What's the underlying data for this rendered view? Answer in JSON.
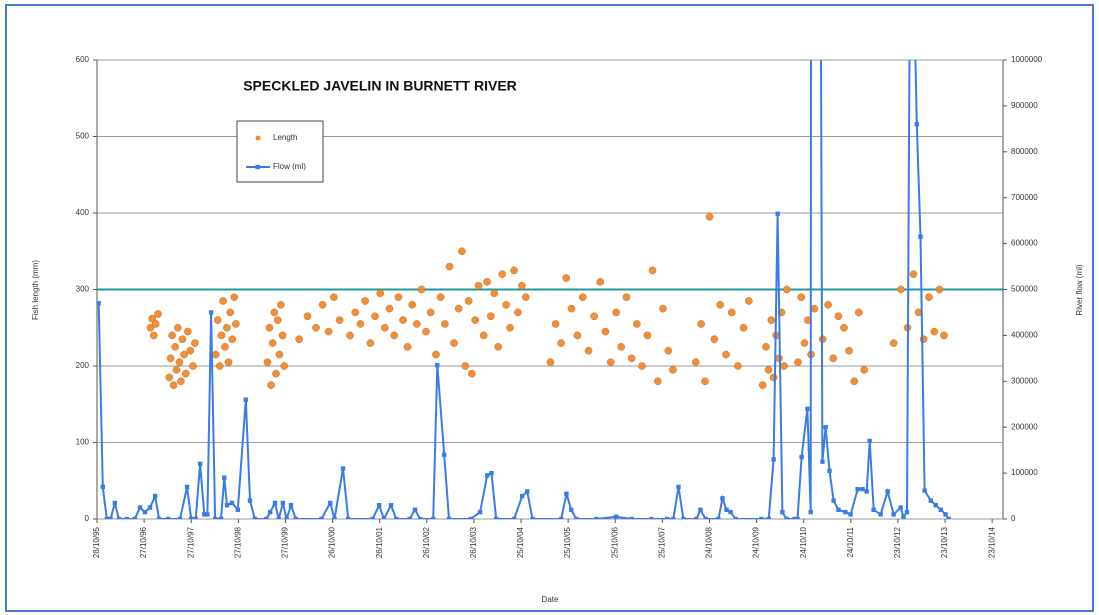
{
  "chart_data": {
    "type": "combo",
    "title": "SPECKLED JAVELIN IN BURNETT RIVER",
    "x_label": "Date",
    "y_label": "Fish length (mm)",
    "y2_label": "River flow (ml)",
    "xlim": [
      "1995-10-28",
      "2015-01-15"
    ],
    "xticks": [
      {
        "value": "1995-10-28",
        "label": "28/10/95"
      },
      {
        "value": "1996-10-27",
        "label": "27/10/96"
      },
      {
        "value": "1997-10-27",
        "label": "27/10/97"
      },
      {
        "value": "1998-10-27",
        "label": "27/10/98"
      },
      {
        "value": "1999-10-27",
        "label": "27/10/99"
      },
      {
        "value": "2000-10-26",
        "label": "26/10/00"
      },
      {
        "value": "2001-10-26",
        "label": "26/10/01"
      },
      {
        "value": "2002-10-26",
        "label": "26/10/02"
      },
      {
        "value": "2003-10-26",
        "label": "26/10/03"
      },
      {
        "value": "2004-10-25",
        "label": "25/10/04"
      },
      {
        "value": "2005-10-25",
        "label": "25/10/05"
      },
      {
        "value": "2006-10-25",
        "label": "25/10/06"
      },
      {
        "value": "2007-10-25",
        "label": "25/10/07"
      },
      {
        "value": "2008-10-24",
        "label": "24/10/08"
      },
      {
        "value": "2009-10-24",
        "label": "24/10/09"
      },
      {
        "value": "2010-10-24",
        "label": "24/10/10"
      },
      {
        "value": "2011-10-24",
        "label": "24/10/11"
      },
      {
        "value": "2012-10-23",
        "label": "23/10/12"
      },
      {
        "value": "2013-10-23",
        "label": "23/10/13"
      },
      {
        "value": "2014-10-23",
        "label": "23/10/14"
      }
    ],
    "ylim": [
      0,
      600
    ],
    "yticks": [
      0,
      100,
      200,
      300,
      400,
      500,
      600
    ],
    "y2lim": [
      0,
      1000000
    ],
    "y2ticks": [
      0,
      100000,
      200000,
      300000,
      400000,
      500000,
      600000,
      700000,
      800000,
      900000,
      1000000
    ],
    "grid": true,
    "grid_color": "#9a9a9a",
    "reference_line": {
      "value": 300,
      "color": "#1f9a98"
    },
    "legend": "upper left",
    "series": [
      {
        "name": "Length",
        "type": "scatter",
        "color": "#f08a30",
        "x": [
          "1996-12-15",
          "1996-12-28",
          "1997-01-10",
          "1997-01-25",
          "1997-02-12",
          "1997-05-10",
          "1997-05-20",
          "1997-06-01",
          "1997-06-12",
          "1997-06-25",
          "1997-07-05",
          "1997-07-15",
          "1997-07-28",
          "1997-08-08",
          "1997-08-20",
          "1997-09-02",
          "1997-09-15",
          "1997-10-01",
          "1997-10-20",
          "1997-11-10",
          "1997-11-25",
          "1998-05-05",
          "1998-05-20",
          "1998-06-05",
          "1998-06-18",
          "1998-07-01",
          "1998-07-15",
          "1998-07-30",
          "1998-08-12",
          "1998-08-25",
          "1998-09-10",
          "1998-09-25",
          "1998-10-08",
          "1999-06-10",
          "1999-06-25",
          "1999-07-08",
          "1999-07-20",
          "1999-08-02",
          "1999-08-15",
          "1999-08-28",
          "1999-09-10",
          "1999-09-22",
          "1999-10-05",
          "1999-10-18",
          "2000-02-10",
          "2000-04-15",
          "2000-06-20",
          "2000-08-10",
          "2000-09-25",
          "2000-11-05",
          "2000-12-20",
          "2001-03-10",
          "2001-04-20",
          "2001-05-30",
          "2001-07-05",
          "2001-08-15",
          "2001-09-20",
          "2001-10-30",
          "2001-12-05",
          "2002-01-10",
          "2002-02-15",
          "2002-03-20",
          "2002-04-25",
          "2002-05-30",
          "2002-07-05",
          "2002-08-10",
          "2002-09-15",
          "2002-10-20",
          "2002-11-25",
          "2003-01-05",
          "2003-02-10",
          "2003-03-15",
          "2003-04-20",
          "2003-05-25",
          "2003-06-30",
          "2003-07-25",
          "2003-08-20",
          "2003-09-15",
          "2003-10-10",
          "2003-11-05",
          "2003-12-01",
          "2004-01-10",
          "2004-02-05",
          "2004-03-05",
          "2004-04-01",
          "2004-05-01",
          "2004-06-01",
          "2004-07-01",
          "2004-08-01",
          "2004-09-01",
          "2004-10-01",
          "2004-11-01",
          "2004-12-01",
          "2005-06-10",
          "2005-07-20",
          "2005-09-01",
          "2005-10-10",
          "2005-11-20",
          "2006-01-05",
          "2006-02-15",
          "2006-04-01",
          "2006-05-15",
          "2006-07-01",
          "2006-08-10",
          "2006-09-20",
          "2006-11-01",
          "2006-12-10",
          "2007-01-20",
          "2007-03-01",
          "2007-04-10",
          "2007-05-20",
          "2007-07-01",
          "2007-08-10",
          "2007-09-20",
          "2007-10-30",
          "2007-12-10",
          "2008-01-15",
          "2008-07-10",
          "2008-08-20",
          "2008-09-20",
          "2008-10-25",
          "2008-12-01",
          "2009-01-15",
          "2009-03-01",
          "2009-04-15",
          "2009-06-01",
          "2009-07-15",
          "2009-08-25",
          "2009-12-10",
          "2010-01-05",
          "2010-01-25",
          "2010-02-15",
          "2010-03-05",
          "2010-03-25",
          "2010-04-15",
          "2010-05-05",
          "2010-05-25",
          "2010-06-15",
          "2010-09-10",
          "2010-10-05",
          "2010-10-30",
          "2010-11-25",
          "2010-12-20",
          "2011-01-15",
          "2011-03-20",
          "2011-05-01",
          "2011-06-10",
          "2011-07-20",
          "2011-09-01",
          "2011-10-10",
          "2011-11-20",
          "2011-12-25",
          "2012-02-05",
          "2012-09-20",
          "2012-11-15",
          "2013-01-05",
          "2013-02-20",
          "2013-04-01",
          "2013-05-10",
          "2013-06-20",
          "2013-08-01",
          "2013-09-10",
          "2013-10-15"
        ],
        "values": [
          250,
          262,
          240,
          255,
          268,
          185,
          210,
          240,
          175,
          225,
          195,
          250,
          205,
          180,
          235,
          215,
          190,
          245,
          220,
          200,
          230,
          215,
          260,
          200,
          240,
          285,
          225,
          250,
          205,
          270,
          235,
          290,
          255,
          205,
          250,
          175,
          230,
          270,
          190,
          260,
          215,
          280,
          240,
          200,
          235,
          265,
          250,
          280,
          245,
          290,
          260,
          240,
          270,
          255,
          285,
          230,
          265,
          295,
          250,
          275,
          240,
          290,
          260,
          225,
          280,
          255,
          300,
          245,
          270,
          215,
          290,
          255,
          330,
          230,
          275,
          350,
          200,
          285,
          190,
          260,
          305,
          240,
          310,
          265,
          295,
          225,
          320,
          280,
          250,
          325,
          270,
          305,
          290,
          205,
          255,
          230,
          315,
          275,
          240,
          290,
          220,
          265,
          310,
          245,
          205,
          270,
          225,
          290,
          210,
          255,
          200,
          240,
          325,
          180,
          275,
          220,
          195,
          205,
          255,
          180,
          395,
          235,
          280,
          215,
          270,
          200,
          250,
          285,
          175,
          225,
          195,
          260,
          185,
          240,
          210,
          270,
          200,
          300,
          205,
          290,
          230,
          260,
          215,
          275,
          235,
          280,
          210,
          265,
          250,
          220,
          180,
          270,
          195,
          230,
          300,
          250,
          320,
          270,
          235,
          290,
          245,
          300,
          240
        ]
      },
      {
        "name": "Flow (ml)",
        "type": "line",
        "axis": "y2",
        "color": "#3b7be6",
        "x": [
          "1995-11-10",
          "1995-12-12",
          "1996-01-12",
          "1996-02-10",
          "1996-03-14",
          "1996-04-15",
          "1996-06-15",
          "1996-08-15",
          "1996-09-25",
          "1996-11-02",
          "1996-12-12",
          "1997-01-20",
          "1997-02-20",
          "1997-05-01",
          "1997-08-01",
          "1997-09-25",
          "1997-10-27",
          "1997-12-01",
          "1998-01-04",
          "1998-02-05",
          "1998-03-01",
          "1998-03-30",
          "1998-04-30",
          "1998-06-15",
          "1998-07-10",
          "1998-07-31",
          "1998-09-08",
          "1998-10-23",
          "1998-12-24",
          "1999-01-25",
          "1999-03-04",
          "1999-06-01",
          "1999-07-01",
          "1999-08-07",
          "1999-09-05",
          "1999-10-07",
          "1999-11-05",
          "1999-12-09",
          "2000-01-15",
          "2000-08-01",
          "2000-10-08",
          "2000-11-10",
          "2001-01-15",
          "2001-02-24",
          "2001-09-01",
          "2001-10-22",
          "2001-11-28",
          "2002-01-22",
          "2002-03-03",
          "2002-06-15",
          "2002-07-27",
          "2002-09-05",
          "2002-12-15",
          "2003-01-15",
          "2003-03-10",
          "2003-04-16",
          "2003-10-01",
          "2003-12-13",
          "2004-02-06",
          "2004-03-10",
          "2004-04-16",
          "2004-09-01",
          "2004-11-03",
          "2004-12-12",
          "2005-01-22",
          "2005-09-01",
          "2005-10-12",
          "2005-11-18",
          "2005-12-28",
          "2006-06-01",
          "2006-11-01",
          "2007-03-01",
          "2007-08-01",
          "2007-12-01",
          "2008-01-18",
          "2008-02-27",
          "2008-04-05",
          "2008-07-15",
          "2008-08-15",
          "2008-09-24",
          "2009-01-01",
          "2009-02-02",
          "2009-03-05",
          "2009-04-05",
          "2009-05-15",
          "2009-12-01",
          "2010-01-26",
          "2010-03-05",
          "2010-04-05",
          "2010-05-12",
          "2010-06-13",
          "2010-08-15",
          "2010-09-06",
          "2010-10-08",
          "2010-11-22",
          "2010-12-17",
          "2010-12-20",
          "2011-03-01",
          "2011-03-18",
          "2011-04-12",
          "2011-05-12",
          "2011-06-13",
          "2011-07-20",
          "2011-09-12",
          "2011-10-22",
          "2011-12-16",
          "2012-01-23",
          "2012-02-24",
          "2012-03-18",
          "2012-04-18",
          "2012-06-11",
          "2012-08-04",
          "2012-09-20",
          "2012-11-13",
          "2012-12-05",
          "2013-01-01",
          "2013-01-30",
          "2013-03-18",
          "2013-04-16",
          "2013-05-18",
          "2013-07-05",
          "2013-08-12",
          "2013-09-20",
          "2013-10-27",
          "2013-11-20"
        ],
        "values": [
          470000,
          70000,
          0,
          0,
          35000,
          0,
          0,
          0,
          25000,
          15000,
          25000,
          50000,
          0,
          0,
          0,
          70000,
          0,
          0,
          120000,
          10000,
          10000,
          450000,
          0,
          0,
          90000,
          30000,
          35000,
          20000,
          260000,
          40000,
          0,
          0,
          15000,
          35000,
          0,
          35000,
          0,
          30000,
          0,
          0,
          35000,
          0,
          110000,
          0,
          0,
          30000,
          0,
          30000,
          0,
          0,
          20000,
          0,
          0,
          335000,
          140000,
          0,
          0,
          15000,
          95000,
          100000,
          0,
          0,
          50000,
          60000,
          0,
          0,
          55000,
          20000,
          0,
          0,
          5000,
          0,
          0,
          0,
          0,
          70000,
          0,
          0,
          20000,
          0,
          0,
          45000,
          20000,
          15000,
          0,
          0,
          0,
          130000,
          665000,
          15000,
          0,
          0,
          0,
          135000,
          240000,
          15000,
          1500000,
          1500000,
          125000,
          200000,
          105000,
          40000,
          20000,
          15000,
          10000,
          65000,
          65000,
          60000,
          170000,
          20000,
          10000,
          60000,
          10000,
          25000,
          5000,
          15000,
          1500000,
          860000,
          615000,
          62000,
          40000,
          30000,
          20000,
          10000,
          0
        ]
      }
    ]
  }
}
